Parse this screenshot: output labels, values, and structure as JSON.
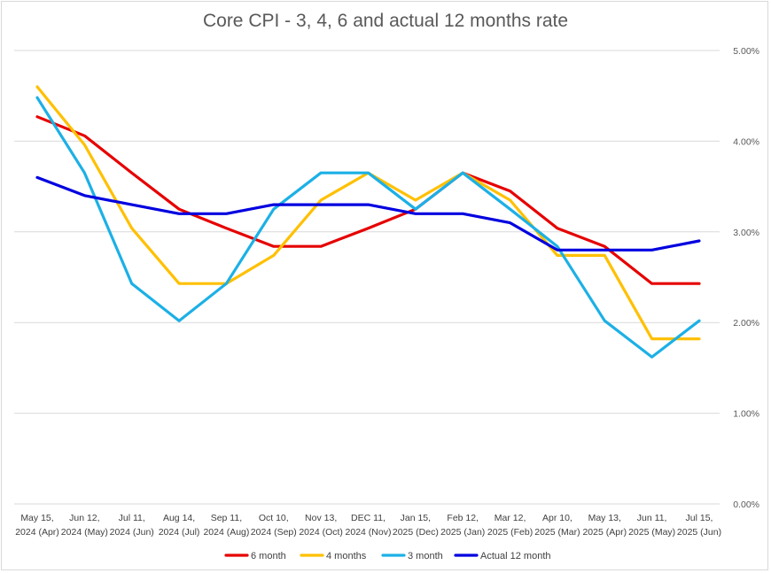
{
  "chart_data": {
    "type": "line",
    "title": "Core CPI - 3, 4, 6 and actual 12 months rate",
    "xlabel": "",
    "ylabel": "",
    "categories": [
      [
        "May 15,",
        "2024 (Apr)"
      ],
      [
        "Jun 12,",
        "2024 (May)"
      ],
      [
        "Jul 11,",
        "2024 (Jun)"
      ],
      [
        "Aug 14,",
        "2024 (Jul)"
      ],
      [
        "Sep 11,",
        "2024 (Aug)"
      ],
      [
        "Oct 10,",
        "2024 (Sep)"
      ],
      [
        "Nov 13,",
        "2024 (Oct)"
      ],
      [
        "DEC 11,",
        "2024 (Nov)"
      ],
      [
        "Jan 15,",
        "2025 (Dec)"
      ],
      [
        "Feb 12,",
        "2025 (Jan)"
      ],
      [
        "Mar 12,",
        "2025 (Feb)"
      ],
      [
        "Apr 10,",
        "2025 (Mar)"
      ],
      [
        "May 13,",
        "2025 (Apr)"
      ],
      [
        "Jun 11,",
        "2025 (May)"
      ],
      [
        "Jul 15,",
        "2025 (Jun)"
      ]
    ],
    "ylim": [
      0,
      5
    ],
    "yticks": [
      "0.00%",
      "1.00%",
      "2.00%",
      "3.00%",
      "4.00%",
      "5.00%"
    ],
    "y_axis_position": "right",
    "grid": true,
    "legend_position": "bottom",
    "series": [
      {
        "name": "6 month",
        "color": "#e60000",
        "values": [
          4.27,
          4.06,
          3.65,
          3.25,
          3.04,
          2.84,
          2.84,
          3.04,
          3.25,
          3.65,
          3.45,
          3.04,
          2.84,
          2.43,
          2.43
        ]
      },
      {
        "name": "4 months",
        "color": "#ffc000",
        "values": [
          4.6,
          3.96,
          3.04,
          2.43,
          2.43,
          2.74,
          3.35,
          3.65,
          3.35,
          3.65,
          3.35,
          2.74,
          2.74,
          1.82,
          1.82
        ]
      },
      {
        "name": "3 month",
        "color": "#1cb0e6",
        "values": [
          4.48,
          3.65,
          2.43,
          2.02,
          2.43,
          3.25,
          3.65,
          3.65,
          3.25,
          3.65,
          3.25,
          2.84,
          2.02,
          1.62,
          2.02
        ]
      },
      {
        "name": "Actual 12 month",
        "color": "#0000e0",
        "values": [
          3.6,
          3.4,
          3.3,
          3.2,
          3.2,
          3.3,
          3.3,
          3.3,
          3.2,
          3.2,
          3.1,
          2.8,
          2.8,
          2.8,
          2.9
        ]
      }
    ]
  }
}
